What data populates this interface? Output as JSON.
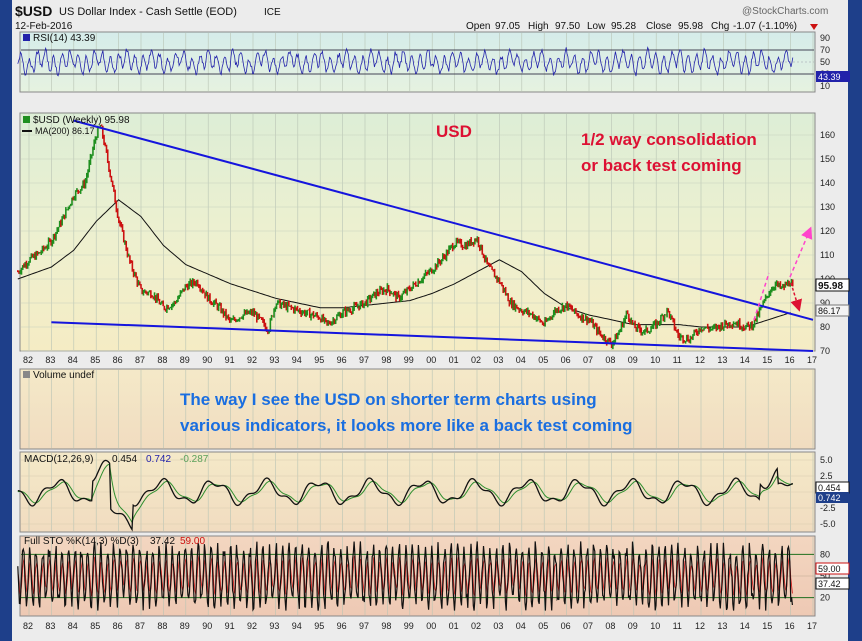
{
  "header": {
    "symbol": "$USD",
    "name": "US Dollar Index - Cash Settle (EOD)",
    "exchange": "ICE",
    "watermark": "@StockCharts.com",
    "date": "12-Feb-2016",
    "ohlc": {
      "open_label": "Open",
      "open": "97.05",
      "high_label": "High",
      "high": "97.50",
      "low_label": "Low",
      "low": "95.28",
      "close_label": "Close",
      "close": "95.98",
      "chg_label": "Chg",
      "chg": "-1.07 (-1.10%)"
    }
  },
  "rsi_panel": {
    "label": "RSI(14) 43.39",
    "ticks": [
      "90",
      "70",
      "50",
      "30",
      "10"
    ],
    "value_tag": "43.39",
    "period": 14
  },
  "main_panel": {
    "legend_series": "$USD (Weekly) 95.98",
    "legend_ma": "MA(200) 86.17",
    "ticks": [
      "160",
      "150",
      "140",
      "130",
      "120",
      "110",
      "100",
      "90",
      "80",
      "70"
    ],
    "price_tag": "95.98",
    "ma_tag": "86.17",
    "annotation_title": "USD",
    "annotation_comment_line1": "1/2 way consolidation",
    "annotation_comment_line2": "or back test coming"
  },
  "volume_panel": {
    "label": "Volume undef",
    "annotation_line1": "The way I see the USD on shorter term charts using",
    "annotation_line2": "various indicators, it looks more  like a back test coming"
  },
  "macd_panel": {
    "label_prefix": "MACD(12,26,9)",
    "macd_value": "0.454",
    "signal_value": "0.742",
    "hist_value": "-0.287",
    "ticks": [
      "5.0",
      "2.5",
      "0.0",
      "-2.5",
      "-5.0"
    ],
    "tag_macd": "0.454",
    "tag_signal": "0.742"
  },
  "sto_panel": {
    "label_prefix": "Full STO %K(14,3) %D(3)",
    "k_value": "37.42",
    "d_value": "59.00",
    "ticks": [
      "80",
      "50",
      "20"
    ],
    "tag_d": "59.00",
    "tag_k": "37.42"
  },
  "x_axis": {
    "labels": [
      "82",
      "83",
      "84",
      "85",
      "86",
      "87",
      "88",
      "89",
      "90",
      "91",
      "92",
      "93",
      "94",
      "95",
      "96",
      "97",
      "98",
      "99",
      "00",
      "01",
      "02",
      "03",
      "04",
      "05",
      "06",
      "07",
      "08",
      "09",
      "10",
      "11",
      "12",
      "13",
      "14",
      "15",
      "16",
      "17"
    ]
  },
  "colors": {
    "up_bar": "#1f8f1f",
    "down_bar": "#cc1111",
    "trendline": "#1515dd",
    "ma_line": "#111111",
    "annotation_red": "#dd1133",
    "annotation_blue": "#1a6ee0",
    "projection_pink": "#ff44cc",
    "rsi_line": "#2222aa",
    "macd_line": "#111111",
    "signal_line": "#2f8f2f"
  },
  "chart_data": [
    {
      "type": "line",
      "title": "US Dollar Index - Cash Settle (EOD)",
      "series": [
        {
          "name": "$USD (Weekly)",
          "x": [
            1981.5,
            1982,
            1982.5,
            1983,
            1983.5,
            1984,
            1984.5,
            1985,
            1985.2,
            1985.5,
            1986,
            1986.5,
            1987,
            1987.5,
            1988,
            1988.5,
            1989,
            1989.5,
            1990,
            1990.5,
            1991,
            1991.5,
            1992,
            1992.7,
            1993,
            1994,
            1995,
            1995.3,
            1996,
            1997,
            1997.5,
            1998,
            1998.5,
            1999,
            2000,
            2000.5,
            2001,
            2001.5,
            2002,
            2002.5,
            2003,
            2003.5,
            2004,
            2004.5,
            2005,
            2005.5,
            2006,
            2006.5,
            2007,
            2007.5,
            2008,
            2008.3,
            2008.7,
            2009,
            2009.5,
            2010,
            2010.5,
            2011,
            2011.5,
            2012,
            2012.5,
            2013,
            2013.5,
            2014,
            2014.3,
            2014.6,
            2015,
            2015.3,
            2015.6,
            2016,
            2016.1
          ],
          "values": [
            103,
            108,
            111,
            116,
            125,
            135,
            140,
            160,
            164,
            150,
            125,
            107,
            95,
            94,
            88,
            90,
            97,
            99,
            92,
            88,
            82,
            85,
            86,
            79,
            90,
            87,
            84,
            81,
            86,
            90,
            94,
            96,
            92,
            96,
            104,
            109,
            115,
            114,
            117,
            105,
            99,
            90,
            87,
            85,
            81,
            87,
            89,
            85,
            83,
            77,
            73,
            77,
            86,
            80,
            78,
            81,
            87,
            76,
            75,
            80,
            79,
            81,
            82,
            80,
            81,
            86,
            94,
            98,
            96,
            99,
            96
          ]
        },
        {
          "name": "MA(200)",
          "x": [
            1981.5,
            1983,
            1984,
            1985,
            1986,
            1987,
            1988,
            1989,
            1990,
            1991,
            1992,
            1993,
            1994,
            1995,
            1996,
            1997,
            1998,
            1999,
            2000,
            2001,
            2002,
            2003,
            2004,
            2005,
            2006,
            2007,
            2008,
            2009,
            2010,
            2011,
            2012,
            2013,
            2014,
            2015,
            2016
          ],
          "values": [
            100,
            105,
            112,
            124,
            133,
            126,
            114,
            106,
            102,
            98,
            95,
            92,
            90,
            88,
            88,
            89,
            90,
            91,
            94,
            98,
            103,
            108,
            103,
            94,
            88,
            85,
            83,
            81,
            81,
            81,
            80,
            80,
            80,
            83,
            86
          ]
        }
      ],
      "ylim": [
        70,
        165
      ],
      "xlim": [
        1981.5,
        2017
      ],
      "trendlines": [
        {
          "name": "upper",
          "from": [
            1984,
            166
          ],
          "to": [
            2017,
            83
          ]
        },
        {
          "name": "lower",
          "from": [
            1983,
            82
          ],
          "to": [
            2017,
            70
          ]
        }
      ],
      "grid": true
    },
    {
      "type": "line",
      "title": "RSI(14)",
      "ylim": [
        0,
        100
      ],
      "current": 43.39,
      "levels": [
        70,
        30
      ]
    },
    {
      "type": "line",
      "title": "MACD(12,26,9)",
      "ylim": [
        -6,
        6
      ],
      "series": [
        {
          "name": "MACD",
          "current": 0.454
        },
        {
          "name": "Signal",
          "current": 0.742
        },
        {
          "name": "Histogram",
          "current": -0.287
        }
      ]
    },
    {
      "type": "line",
      "title": "Full STO %K(14,3) %D(3)",
      "ylim": [
        0,
        100
      ],
      "series": [
        {
          "name": "%K",
          "current": 37.42
        },
        {
          "name": "%D",
          "current": 59.0
        }
      ],
      "levels": [
        80,
        20
      ]
    }
  ]
}
